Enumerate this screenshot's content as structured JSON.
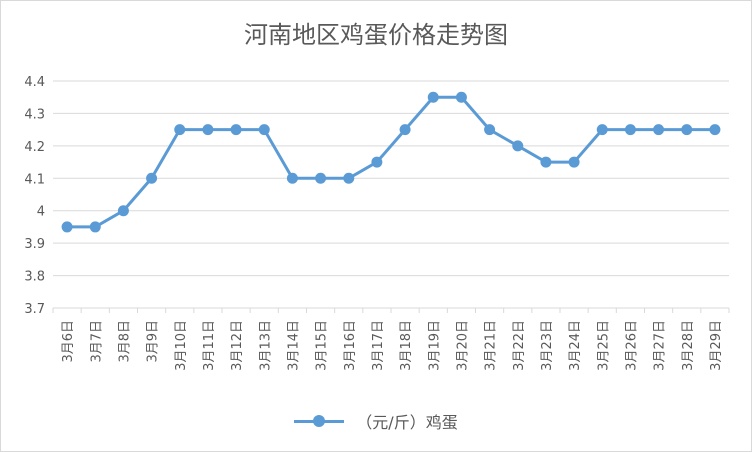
{
  "chart_data": {
    "type": "line",
    "title": "河南地区鸡蛋价格走势图",
    "categories": [
      "3月6日",
      "3月7日",
      "3月8日",
      "3月9日",
      "3月10日",
      "3月11日",
      "3月12日",
      "3月13日",
      "3月14日",
      "3月15日",
      "3月16日",
      "3月17日",
      "3月18日",
      "3月19日",
      "3月20日",
      "3月21日",
      "3月22日",
      "3月23日",
      "3月24日",
      "3月25日",
      "3月26日",
      "3月27日",
      "3月28日",
      "3月29日"
    ],
    "series": [
      {
        "name": "（元/斤）鸡蛋",
        "color": "#5b9bd5",
        "values": [
          3.95,
          3.95,
          4.0,
          4.1,
          4.25,
          4.25,
          4.25,
          4.25,
          4.1,
          4.1,
          4.1,
          4.15,
          4.25,
          4.35,
          4.35,
          4.25,
          4.2,
          4.15,
          4.15,
          4.25,
          4.25,
          4.25,
          4.25,
          4.25
        ]
      }
    ],
    "ylim": [
      3.7,
      4.4
    ],
    "yticks": [
      "3.7",
      "3.8",
      "3.9",
      "4",
      "4.1",
      "4.2",
      "4.3",
      "4.4"
    ],
    "grid": true,
    "legend": "bottom"
  }
}
